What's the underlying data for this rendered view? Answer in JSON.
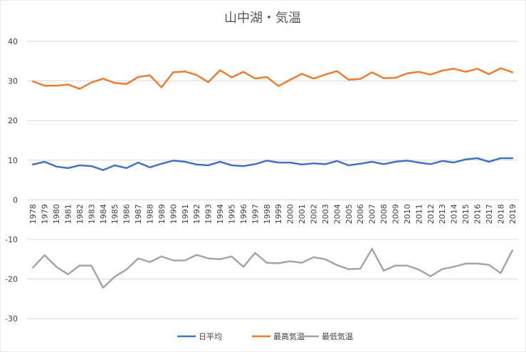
{
  "chart_data": {
    "type": "line",
    "title": "山中湖・気温",
    "xlabel": "",
    "ylabel": "",
    "ylim": [
      -35,
      40
    ],
    "yticks": [
      40,
      30,
      20,
      10,
      0,
      -10,
      -20,
      -30
    ],
    "grid": true,
    "legend_position": "bottom",
    "categories": [
      "1978",
      "1979",
      "1980",
      "1981",
      "1982",
      "1983",
      "1984",
      "1985",
      "1986",
      "1987",
      "1988",
      "1989",
      "1990",
      "1991",
      "1992",
      "1993",
      "1994",
      "1995",
      "1996",
      "1997",
      "1998",
      "1999",
      "2000",
      "2001",
      "2002",
      "2003",
      "2004",
      "2005",
      "2006",
      "2007",
      "2008",
      "2009",
      "2010",
      "2011",
      "2012",
      "2013",
      "2014",
      "2015",
      "2016",
      "2017",
      "2018",
      "2019"
    ],
    "series": [
      {
        "name": "日平均",
        "color": "#4472c4",
        "values": [
          8.9,
          9.6,
          8.4,
          8.0,
          8.7,
          8.5,
          7.5,
          8.7,
          8.0,
          9.4,
          8.2,
          9.1,
          9.9,
          9.6,
          8.9,
          8.7,
          9.6,
          8.7,
          8.5,
          9.0,
          9.9,
          9.4,
          9.4,
          8.9,
          9.2,
          9.0,
          9.8,
          8.7,
          9.1,
          9.6,
          9.0,
          9.6,
          9.9,
          9.4,
          9.0,
          9.8,
          9.4,
          10.2,
          10.5,
          9.6,
          10.5,
          10.5
        ]
      },
      {
        "name": "最高気温",
        "color": "#ed7d31",
        "values": [
          29.9,
          28.8,
          28.8,
          29.1,
          28.0,
          29.6,
          30.6,
          29.5,
          29.2,
          31.0,
          31.4,
          28.4,
          32.2,
          32.4,
          31.5,
          29.7,
          32.7,
          30.9,
          32.3,
          30.6,
          31.0,
          28.7,
          30.3,
          31.8,
          30.6,
          31.6,
          32.5,
          30.3,
          30.5,
          32.2,
          30.7,
          30.8,
          31.9,
          32.3,
          31.6,
          32.6,
          33.1,
          32.3,
          33.1,
          31.7,
          33.2,
          32.2
        ]
      },
      {
        "name": "最低気温",
        "color": "#a5a5a5",
        "values": [
          -17.1,
          -14.0,
          -16.9,
          -18.8,
          -16.6,
          -16.6,
          -22.2,
          -19.4,
          -17.6,
          -14.8,
          -15.7,
          -14.3,
          -15.3,
          -15.3,
          -13.9,
          -14.8,
          -15.0,
          -14.3,
          -16.9,
          -13.4,
          -15.9,
          -16.0,
          -15.5,
          -15.9,
          -14.5,
          -15.0,
          -16.5,
          -17.5,
          -17.4,
          -12.4,
          -17.9,
          -16.6,
          -16.6,
          -17.6,
          -19.3,
          -17.5,
          -16.9,
          -16.1,
          -16.1,
          -16.4,
          -18.5,
          -12.8
        ]
      }
    ]
  }
}
